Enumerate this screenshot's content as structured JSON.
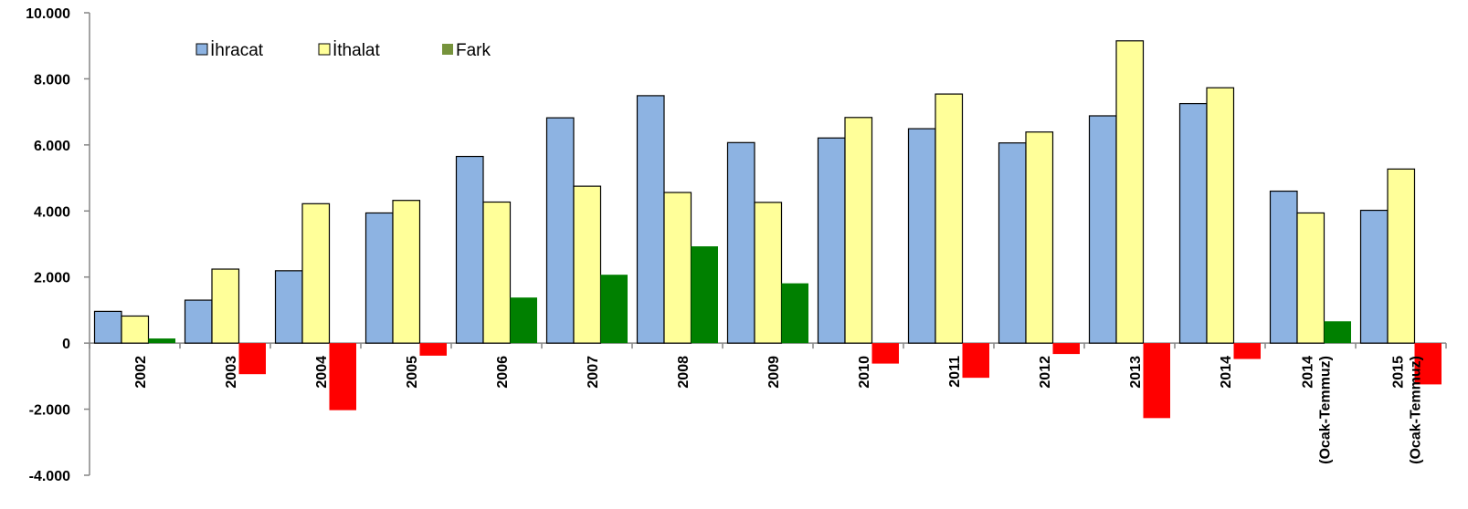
{
  "chart_data": {
    "type": "bar",
    "categories": [
      "2002",
      "2003",
      "2004",
      "2005",
      "2006",
      "2007",
      "2008",
      "2009",
      "2010",
      "2011",
      "2012",
      "2013",
      "2014",
      "2014 (Ocak-Temmuz)",
      "2015 (Ocak-Temmuz)"
    ],
    "category_lines": [
      [
        "2002"
      ],
      [
        "2003"
      ],
      [
        "2004"
      ],
      [
        "2005"
      ],
      [
        "2006"
      ],
      [
        "2007"
      ],
      [
        "2008"
      ],
      [
        "2009"
      ],
      [
        "2010"
      ],
      [
        "2011"
      ],
      [
        "2012"
      ],
      [
        "2013"
      ],
      [
        "2014"
      ],
      [
        "2014",
        "(Ocak-Temmuz)"
      ],
      [
        "2015",
        "(Ocak-Temmuz)"
      ]
    ],
    "series": [
      {
        "name": "İhracat",
        "color": "#8DB3E2",
        "values": [
          960,
          1300,
          2190,
          3940,
          5650,
          6820,
          7490,
          6070,
          6210,
          6490,
          6060,
          6880,
          7250,
          4600,
          4020
        ]
      },
      {
        "name": "İthalat",
        "color": "#FFFF99",
        "values": [
          820,
          2240,
          4220,
          4320,
          4270,
          4750,
          4560,
          4260,
          6830,
          7540,
          6390,
          9150,
          7730,
          3940,
          5270
        ]
      },
      {
        "name": "Fark",
        "color": "#008000",
        "legend_color": "#76933C",
        "negative_color": "#FF0000",
        "values": [
          140,
          -940,
          -2030,
          -380,
          1380,
          2070,
          2930,
          1810,
          -620,
          -1050,
          -330,
          -2270,
          -480,
          660,
          -1250
        ]
      }
    ],
    "ylim": [
      -4000,
      10000
    ],
    "yticks": [
      -4000,
      -2000,
      0,
      2000,
      4000,
      6000,
      8000,
      10000
    ],
    "ytick_labels": [
      "-4.000",
      "-2.000",
      "0",
      "2.000",
      "4.000",
      "6.000",
      "8.000",
      "10.000"
    ],
    "legend_position": "top-left",
    "grid": false
  }
}
